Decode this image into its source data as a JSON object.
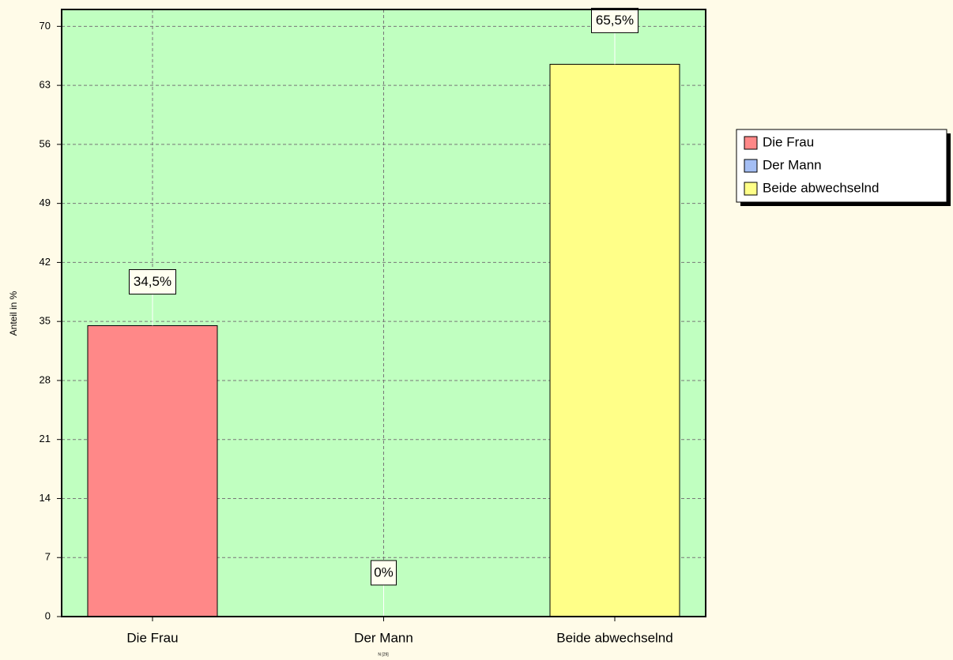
{
  "chart_data": {
    "type": "bar",
    "categories": [
      "Die Frau",
      "Der Mann",
      "Beide abwechselnd"
    ],
    "values": [
      34.5,
      0,
      65.5
    ],
    "value_labels": [
      "34,5%",
      "0%",
      "65,5%"
    ],
    "colors": [
      "#ff8888",
      "#a4bef4",
      "#ffff88"
    ],
    "y_label": "Anteil in %",
    "note": "N [29]",
    "ylim": [
      0,
      72
    ],
    "yticks": [
      0,
      7,
      14,
      21,
      28,
      35,
      42,
      49,
      56,
      63,
      70
    ],
    "grid": true,
    "legend": "right"
  }
}
